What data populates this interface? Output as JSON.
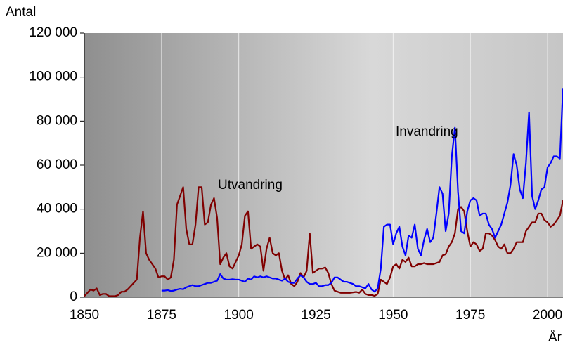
{
  "chart_data": {
    "type": "line",
    "y_label": "Antal",
    "x_label": "År",
    "annotations": [
      "Utvandring",
      "Invandring"
    ],
    "x": [
      1850,
      1851,
      1852,
      1853,
      1854,
      1855,
      1856,
      1857,
      1858,
      1859,
      1860,
      1861,
      1862,
      1863,
      1864,
      1865,
      1866,
      1867,
      1868,
      1869,
      1870,
      1871,
      1872,
      1873,
      1874,
      1875,
      1876,
      1877,
      1878,
      1879,
      1880,
      1881,
      1882,
      1883,
      1884,
      1885,
      1886,
      1887,
      1888,
      1889,
      1890,
      1891,
      1892,
      1893,
      1894,
      1895,
      1896,
      1897,
      1898,
      1899,
      1900,
      1901,
      1902,
      1903,
      1904,
      1905,
      1906,
      1907,
      1908,
      1909,
      1910,
      1911,
      1912,
      1913,
      1914,
      1915,
      1916,
      1917,
      1918,
      1919,
      1920,
      1921,
      1922,
      1923,
      1924,
      1925,
      1926,
      1927,
      1928,
      1929,
      1930,
      1931,
      1932,
      1933,
      1934,
      1935,
      1936,
      1937,
      1938,
      1939,
      1940,
      1941,
      1942,
      1943,
      1944,
      1945,
      1946,
      1947,
      1948,
      1949,
      1950,
      1951,
      1952,
      1953,
      1954,
      1955,
      1956,
      1957,
      1958,
      1959,
      1960,
      1961,
      1962,
      1963,
      1964,
      1965,
      1966,
      1967,
      1968,
      1969,
      1970,
      1971,
      1972,
      1973,
      1974,
      1975,
      1976,
      1977,
      1978,
      1979,
      1980,
      1981,
      1982,
      1983,
      1984,
      1985,
      1986,
      1987,
      1988,
      1989,
      1990,
      1991,
      1992,
      1993,
      1994,
      1995,
      1996,
      1997,
      1998,
      1999,
      2000,
      2001,
      2002,
      2003,
      2004,
      2005
    ],
    "series": [
      {
        "name": "Utvandring",
        "color": "#800000",
        "values": [
          500,
          2000,
          3500,
          3000,
          4000,
          1000,
          1500,
          1500,
          500,
          500,
          500,
          1000,
          2500,
          2500,
          3500,
          5000,
          6500,
          8000,
          27000,
          39000,
          20000,
          17000,
          15000,
          13000,
          9000,
          9500,
          9500,
          8000,
          9000,
          17000,
          42000,
          46000,
          50000,
          31000,
          24000,
          24000,
          33000,
          50000,
          50000,
          33000,
          34000,
          42000,
          45000,
          36000,
          15000,
          18000,
          20000,
          14000,
          13000,
          16000,
          19000,
          24000,
          37000,
          39000,
          22000,
          23000,
          24000,
          23000,
          12000,
          22000,
          27000,
          20000,
          19000,
          20000,
          12000,
          8000,
          10000,
          6000,
          5000,
          7000,
          11000,
          9000,
          12000,
          29000,
          11000,
          12000,
          13000,
          13000,
          13500,
          11000,
          6000,
          3000,
          2500,
          2000,
          2000,
          2000,
          2000,
          2200,
          2400,
          2000,
          3500,
          1500,
          1000,
          1000,
          600,
          1500,
          8000,
          7000,
          6000,
          9000,
          14000,
          15000,
          13000,
          17000,
          16000,
          18000,
          14000,
          14000,
          15000,
          15000,
          15500,
          15000,
          15000,
          15000,
          15500,
          16000,
          19000,
          19500,
          23000,
          25000,
          29000,
          40000,
          41000,
          39000,
          30000,
          23000,
          25000,
          24000,
          21000,
          22000,
          29000,
          29000,
          28000,
          26000,
          23000,
          22000,
          24000,
          20000,
          20000,
          22000,
          25000,
          25000,
          25000,
          30000,
          32000,
          34000,
          34000,
          38000,
          38000,
          35000,
          34000,
          32000,
          33000,
          35000,
          37000,
          44000
        ]
      },
      {
        "name": "Invandring",
        "color": "#0000ff",
        "values": [
          null,
          null,
          null,
          null,
          null,
          null,
          null,
          null,
          null,
          null,
          null,
          null,
          null,
          null,
          null,
          null,
          null,
          null,
          null,
          null,
          null,
          null,
          null,
          null,
          null,
          3000,
          3000,
          3200,
          2800,
          3000,
          3500,
          3800,
          3600,
          4500,
          5000,
          5500,
          5000,
          5000,
          5500,
          6000,
          6500,
          6500,
          7000,
          7500,
          10500,
          8500,
          8000,
          8000,
          8200,
          8000,
          8000,
          7500,
          7000,
          8500,
          8000,
          9500,
          9000,
          9500,
          9000,
          9500,
          9000,
          8500,
          8500,
          8000,
          7500,
          8500,
          7000,
          6500,
          6500,
          8500,
          10000,
          9000,
          7000,
          6000,
          6000,
          6500,
          5000,
          5000,
          5500,
          5500,
          6500,
          9000,
          9000,
          8000,
          7000,
          7000,
          6500,
          6000,
          5000,
          5000,
          4500,
          4000,
          6000,
          3500,
          2500,
          4000,
          13000,
          32000,
          33000,
          33000,
          24000,
          29000,
          32000,
          23000,
          19000,
          28000,
          27000,
          33000,
          22000,
          19000,
          26000,
          31000,
          25000,
          27000,
          38000,
          50000,
          47000,
          30000,
          38000,
          64000,
          77000,
          48000,
          30000,
          29000,
          39000,
          44000,
          45000,
          44000,
          37000,
          38000,
          38000,
          33000,
          31000,
          27000,
          30000,
          33000,
          38000,
          43000,
          51000,
          65000,
          60000,
          49000,
          45000,
          61000,
          84000,
          46000,
          40000,
          44000,
          49000,
          50000,
          59000,
          61000,
          64000,
          64000,
          63000,
          95000
        ]
      }
    ],
    "xlim": [
      1850,
      2005
    ],
    "xticks": [
      1850,
      1875,
      1900,
      1925,
      1950,
      1975,
      2000
    ],
    "ylim": [
      0,
      120000
    ],
    "yticks": [
      0,
      {
        "value": 20000,
        "label": "20 000"
      },
      {
        "value": 40000,
        "label": "40 000"
      },
      {
        "value": 60000,
        "label": "60 000"
      },
      {
        "value": 80000,
        "label": "80 000"
      },
      {
        "value": 100000,
        "label": "100 000"
      },
      {
        "value": 120000,
        "label": "120 000"
      }
    ],
    "grid": true
  }
}
